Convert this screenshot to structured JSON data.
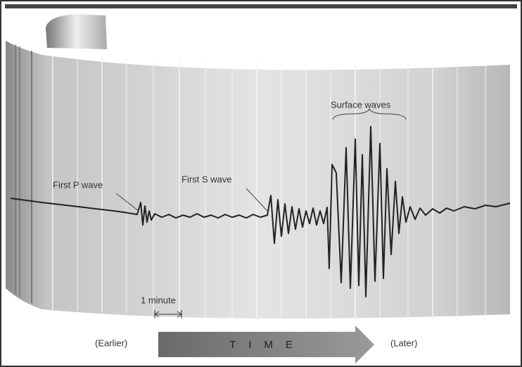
{
  "labels": {
    "p_wave": "First P wave",
    "s_wave": "First S wave",
    "surface_waves": "Surface waves",
    "one_minute": "1 minute",
    "earlier": "(Earlier)",
    "time": "TIME",
    "later": "(Later)"
  }
}
